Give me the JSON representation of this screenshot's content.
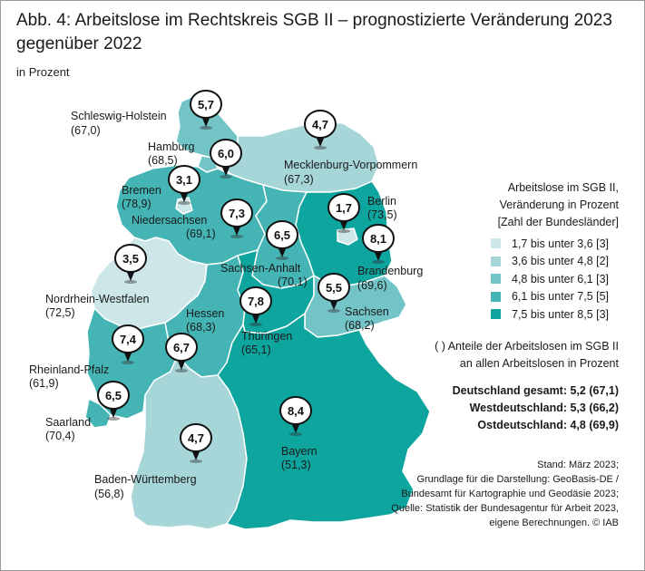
{
  "title": "Abb. 4: Arbeitslose im Rechtskreis SGB II – prognostizierte Veränderung 2023 gegenüber 2022",
  "subtitle": "in Prozent",
  "colors": {
    "c1": "#cde7e8",
    "c2": "#a6d6d8",
    "c3": "#73c4c7",
    "c4": "#45b4b5",
    "c5": "#0ea59f",
    "border": "#ffffff",
    "pin": "#111111"
  },
  "legend": {
    "title_lines": [
      "Arbeitslose im SGB II,",
      "Veränderung in Prozent",
      "[Zahl der Bundesländer]"
    ],
    "items": [
      {
        "label": "1,7 bis unter 3,6 [3]",
        "color": "#cde7e8"
      },
      {
        "label": "3,6 bis unter 4,8 [2]",
        "color": "#a6d6d8"
      },
      {
        "label": "4,8 bis unter 6,1 [3]",
        "color": "#73c4c7"
      },
      {
        "label": "6,1 bis unter 7,5 [5]",
        "color": "#45b4b5"
      },
      {
        "label": "7,5 bis unter 8,5 [3]",
        "color": "#0ea59f"
      }
    ]
  },
  "note_lines": [
    "( ) Anteile der Arbeitslosen im SGB II",
    "an allen Arbeitslosen in Prozent"
  ],
  "totals": [
    "Deutschland gesamt: 5,2 (67,1)",
    "Westdeutschland: 5,3 (66,2)",
    "Ostdeutschland: 4,8 (69,9)"
  ],
  "source_lines": [
    "Stand: März 2023;",
    "Grundlage für die Darstellung: GeoBasis-DE /",
    "Bundesamt für Kartographie und Geodäsie 2023;",
    "Quelle: Statistik der Bundesagentur für Arbeit 2023,",
    "eigene Berechnungen. © IAB"
  ],
  "states": [
    {
      "id": "sh",
      "name": "Schleswig-Holstein",
      "share": "(67,0)",
      "value": "5,7",
      "klass": 3
    },
    {
      "id": "hh",
      "name": "Hamburg",
      "share": "(68,5)",
      "value": "6,0",
      "klass": 3
    },
    {
      "id": "mv",
      "name": "Mecklenburg-Vorpommern",
      "share": "(67,3)",
      "value": "4,7",
      "klass": 2
    },
    {
      "id": "hb",
      "name": "Bremen",
      "share": "(78,9)",
      "value": "3,1",
      "klass": 1
    },
    {
      "id": "ni",
      "name": "Niedersachsen",
      "share": "(69,1)",
      "value": "7,3",
      "klass": 4
    },
    {
      "id": "be",
      "name": "Berlin",
      "share": "(73,5)",
      "value": "1,7",
      "klass": 1
    },
    {
      "id": "bb",
      "name": "Brandenburg",
      "share": "(69,6)",
      "value": "8,1",
      "klass": 5
    },
    {
      "id": "st",
      "name": "Sachsen-Anhalt",
      "share": "(70,1)",
      "value": "6,5",
      "klass": 4
    },
    {
      "id": "nw",
      "name": "Nordrhein-Westfalen",
      "share": "(72,5)",
      "value": "3,5",
      "klass": 1
    },
    {
      "id": "he",
      "name": "Hessen",
      "share": "(68,3)",
      "value": "6,7",
      "klass": 4
    },
    {
      "id": "th",
      "name": "Thüringen",
      "share": "(65,1)",
      "value": "7,8",
      "klass": 5
    },
    {
      "id": "sn",
      "name": "Sachsen",
      "share": "(68,2)",
      "value": "5,5",
      "klass": 3
    },
    {
      "id": "rp",
      "name": "Rheinland-Pfalz",
      "share": "(61,9)",
      "value": "7,4",
      "klass": 4
    },
    {
      "id": "sl",
      "name": "Saarland",
      "share": "(70,4)",
      "value": "6,5",
      "klass": 4
    },
    {
      "id": "bw",
      "name": "Baden-Württemberg",
      "share": "(56,8)",
      "value": "4,7",
      "klass": 2
    },
    {
      "id": "by",
      "name": "Bayern",
      "share": "(51,3)",
      "value": "8,4",
      "klass": 5
    }
  ]
}
